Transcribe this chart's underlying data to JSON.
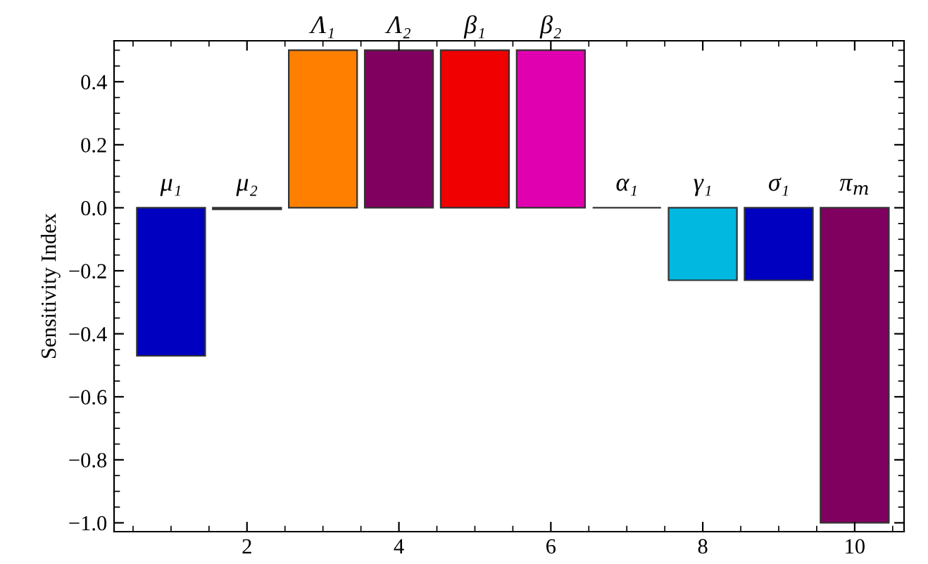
{
  "chart_data": {
    "type": "bar",
    "ylabel": "Sensitivity Index",
    "x": [
      1,
      2,
      3,
      4,
      5,
      6,
      7,
      8,
      9,
      10
    ],
    "values": [
      -0.47,
      -0.005,
      0.5,
      0.5,
      0.5,
      0.5,
      0,
      -0.23,
      -0.23,
      -1.0
    ],
    "colors": [
      "#0000c0",
      "#006400",
      "#ff8000",
      "#800060",
      "#f00000",
      "#e000b0",
      "#333333",
      "#00b8e0",
      "#0000c0",
      "#800060"
    ],
    "xlim": [
      0.25,
      10.65
    ],
    "xticks": [
      2,
      4,
      6,
      8,
      10
    ],
    "ylim": [
      -1.028,
      0.53
    ],
    "yticks": [
      {
        "value": -1.0,
        "label": "−1.0"
      },
      {
        "value": -0.8,
        "label": "−0.8"
      },
      {
        "value": -0.6,
        "label": "−0.6"
      },
      {
        "value": -0.4,
        "label": "−0.4"
      },
      {
        "value": -0.2,
        "label": "−0.2"
      },
      {
        "value": 0.0,
        "label": "0.0"
      },
      {
        "value": 0.2,
        "label": "0.2"
      },
      {
        "value": 0.4,
        "label": "0.4"
      }
    ],
    "grid": false,
    "annotations": [
      {
        "text": "μ₁",
        "x": 1,
        "y": 0
      },
      {
        "text": "μ₂",
        "x": 2,
        "y": 0
      },
      {
        "text": "Λ₁",
        "x": 3,
        "y": 0.5
      },
      {
        "text": "Λ₂",
        "x": 4,
        "y": 0.5
      },
      {
        "text": "β₁",
        "x": 5,
        "y": 0.5
      },
      {
        "text": "β₂",
        "x": 6,
        "y": 0.5
      },
      {
        "text": "α₁",
        "x": 7,
        "y": 0
      },
      {
        "text": "γ₁",
        "x": 8,
        "y": 0
      },
      {
        "text": "σ₁",
        "x": 9,
        "y": 0
      },
      {
        "text": "π$_{m}$",
        "x": 10,
        "y": 0
      }
    ]
  }
}
